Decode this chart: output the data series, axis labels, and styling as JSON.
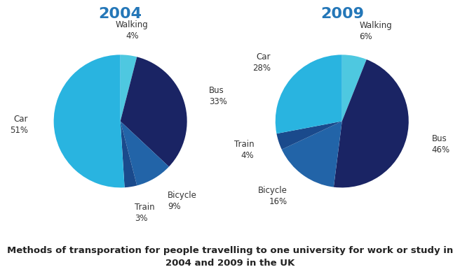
{
  "title_2004": "2004",
  "title_2009": "2009",
  "title_color": "#2477b8",
  "title_fontsize": 16,
  "caption": "Methods of transporation for people travelling to one university for work or study in\n2004 and 2009 in the UK",
  "caption_fontsize": 9.5,
  "pie_2004": {
    "labels": [
      "Walking",
      "Bus",
      "Bicycle",
      "Train",
      "Car"
    ],
    "values": [
      4,
      33,
      9,
      3,
      51
    ],
    "colors": [
      "#4ec8e0",
      "#1a2464",
      "#2264a8",
      "#1a4a8c",
      "#29b4e0"
    ],
    "startangle": 90
  },
  "pie_2009": {
    "labels": [
      "Walking",
      "Bus",
      "Bicycle",
      "Train",
      "Car"
    ],
    "values": [
      6,
      46,
      16,
      4,
      28
    ],
    "colors": [
      "#4ec8e0",
      "#1a2464",
      "#2264a8",
      "#1a4a8c",
      "#29b4e0"
    ],
    "startangle": 90
  },
  "background_color": "#ffffff",
  "label_fontsize": 8.5
}
